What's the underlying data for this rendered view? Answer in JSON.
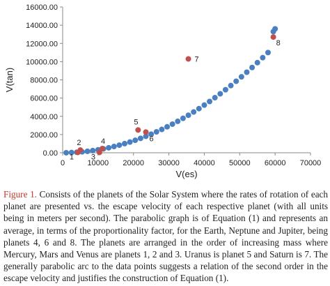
{
  "chart_data": {
    "type": "scatter",
    "xlabel": "V(es)",
    "ylabel": "V(tan)",
    "xlim": [
      0,
      70000
    ],
    "ylim": [
      0,
      16000
    ],
    "x_ticks": [
      "0",
      "10000",
      "20000",
      "30000",
      "40000",
      "50000",
      "60000",
      "70000"
    ],
    "y_ticks": [
      "0.00",
      "2000.00",
      "4000.00",
      "6000.00",
      "8000.00",
      "10000.00",
      "12000.00",
      "14000.00",
      "16000.00"
    ],
    "grid": false,
    "series": [
      {
        "role": "parabolic fit",
        "color": "#4a7fc1",
        "x": [
          1000,
          2500,
          4000,
          5500,
          7000,
          8500,
          10000,
          11500,
          13000,
          14500,
          16000,
          17500,
          19000,
          20500,
          22000,
          23500,
          25000,
          26500,
          28000,
          29500,
          31000,
          32500,
          34000,
          35500,
          37000,
          38500,
          40000,
          41500,
          43000,
          44500,
          46000,
          47500,
          49000,
          50500,
          52000,
          53500,
          55000,
          56500,
          58000,
          59500,
          60000
        ],
        "y": [
          3,
          24,
          58,
          102,
          162,
          237,
          327,
          431,
          550,
          685,
          836,
          1003,
          1178,
          1373,
          1583,
          1804,
          2043,
          2297,
          2562,
          2847,
          3141,
          3451,
          3780,
          4119,
          4474,
          4845,
          5231,
          5627,
          6046,
          6471,
          6918,
          7374,
          7850,
          8335,
          8843,
          9358,
          9891,
          10438,
          11000,
          13300,
          13600
        ]
      },
      {
        "role": "planets",
        "color": "#c0504d",
        "points": [
          {
            "label": "1",
            "x": 4300,
            "y": 40
          },
          {
            "label": "2",
            "x": 5000,
            "y": 300
          },
          {
            "label": "3",
            "x": 10400,
            "y": 40
          },
          {
            "label": "4",
            "x": 11200,
            "y": 460
          },
          {
            "label": "5",
            "x": 21300,
            "y": 2500
          },
          {
            "label": "6",
            "x": 23500,
            "y": 2270
          },
          {
            "label": "7",
            "x": 35500,
            "y": 10300
          },
          {
            "label": "8",
            "x": 59500,
            "y": 12700
          }
        ]
      }
    ]
  },
  "caption": {
    "label": "Figure 1.",
    "text": " Consists of the planets of the Solar System where the rates of rotation of each planet are presented vs. the escape velocity of each respective planet (with all units being in meters per second). The parabolic graph is of Equation (1) and represents an average, in terms of the proportionality factor, for the Earth, Neptune and Jupiter, being planets 4, 6 and 8. The planets are arranged in the order of increasing mass where Mercury, Mars and Venus are planets 1, 2 and 3. Uranus is planet 5 and Saturn is 7. The generally parabolic arc to the data points suggests a relation of the second order in the escape velocity and justifies the construction of Equation (1)."
  }
}
